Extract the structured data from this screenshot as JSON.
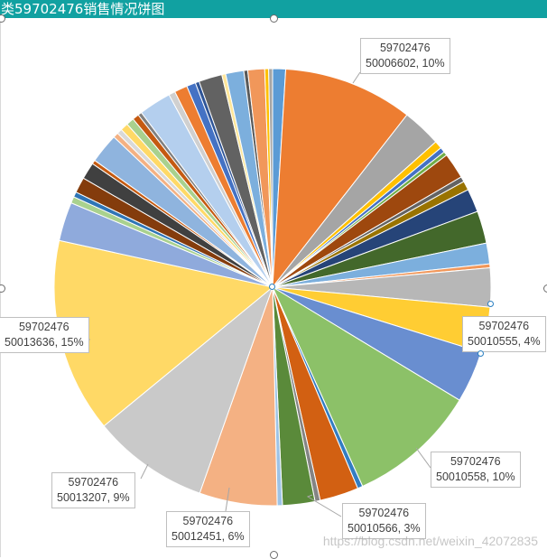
{
  "title": "类59702476销售情况饼图",
  "watermark": "https://blog.csdn.net/weixin_42072835",
  "chart_data": {
    "type": "pie",
    "title": "类59702476销售情况饼图",
    "slices": [
      {
        "category": "",
        "value": 1.0,
        "color": "#5b9bd5"
      },
      {
        "category": "50006602",
        "value": 10.0,
        "color": "#ed7d31",
        "label": "59702476\n50006602, 10%"
      },
      {
        "category": "",
        "value": 3.0,
        "color": "#a5a5a5"
      },
      {
        "category": "",
        "value": 0.6,
        "color": "#ffc000"
      },
      {
        "category": "",
        "value": 0.4,
        "color": "#4472c4"
      },
      {
        "category": "",
        "value": 0.3,
        "color": "#70ad47"
      },
      {
        "category": "",
        "value": 2.0,
        "color": "#9e480e"
      },
      {
        "category": "",
        "value": 0.4,
        "color": "#636363"
      },
      {
        "category": "",
        "value": 0.7,
        "color": "#997300"
      },
      {
        "category": "",
        "value": 1.8,
        "color": "#264478"
      },
      {
        "category": "",
        "value": 2.5,
        "color": "#43682b"
      },
      {
        "category": "",
        "value": 1.6,
        "color": "#7cafdd"
      },
      {
        "category": "",
        "value": 0.3,
        "color": "#f1975a"
      },
      {
        "category": "",
        "value": 3.0,
        "color": "#b7b7b7"
      },
      {
        "category": "",
        "value": 3.5,
        "color": "#ffcd33"
      },
      {
        "category": "50010555",
        "value": 4.0,
        "color": "#698ed0",
        "label": "59702476\n50010555, 4%"
      },
      {
        "category": "50010558",
        "value": 10.0,
        "color": "#8cc168",
        "label": "59702476\n50010558, 10%"
      },
      {
        "category": "",
        "value": 0.4,
        "color": "#327dc2"
      },
      {
        "category": "50010566",
        "value": 3.0,
        "color": "#d26012",
        "label": "59702476\n50010566, 3%"
      },
      {
        "category": "",
        "value": 0.4,
        "color": "#848484"
      },
      {
        "category": "",
        "value": 2.5,
        "color": "#5a8a3a"
      },
      {
        "category": "",
        "value": 0.4,
        "color": "#9dc3e6"
      },
      {
        "category": "50012451",
        "value": 6.0,
        "color": "#f4b183",
        "label": "59702476\n50012451, 6%"
      },
      {
        "category": "50013207",
        "value": 9.0,
        "color": "#c9c9c9",
        "label": "59702476\n50013207, 9%"
      },
      {
        "category": "50013636",
        "value": 15.0,
        "color": "#ffd966",
        "label": "59702476\n50013636, 15%"
      },
      {
        "category": "",
        "value": 3.0,
        "color": "#8faadc"
      },
      {
        "category": "",
        "value": 0.5,
        "color": "#a9d18e"
      },
      {
        "category": "",
        "value": 0.4,
        "color": "#2e75b6"
      },
      {
        "category": "",
        "value": 1.2,
        "color": "#843c0c"
      },
      {
        "category": "",
        "value": 1.3,
        "color": "#404040"
      },
      {
        "category": "",
        "value": 0.3,
        "color": "#c55a11"
      },
      {
        "category": "",
        "value": 2.3,
        "color": "#8fb4de"
      },
      {
        "category": "",
        "value": 0.4,
        "color": "#f4b183"
      },
      {
        "category": "",
        "value": 0.4,
        "color": "#d9d9d9"
      },
      {
        "category": "",
        "value": 0.6,
        "color": "#ffd966"
      },
      {
        "category": "",
        "value": 0.6,
        "color": "#a9d18e"
      },
      {
        "category": "",
        "value": 0.5,
        "color": "#c55a11"
      },
      {
        "category": "",
        "value": 0.3,
        "color": "#808080"
      },
      {
        "category": "",
        "value": 2.5,
        "color": "#b4cfee"
      },
      {
        "category": "",
        "value": 0.5,
        "color": "#d0d0d0"
      },
      {
        "category": "",
        "value": 1.0,
        "color": "#ed7d31"
      },
      {
        "category": "",
        "value": 0.7,
        "color": "#4472c4"
      },
      {
        "category": "",
        "value": 0.3,
        "color": "#2f5597"
      },
      {
        "category": "",
        "value": 1.8,
        "color": "#626262"
      },
      {
        "category": "",
        "value": 0.3,
        "color": "#ffe699"
      },
      {
        "category": "",
        "value": 1.4,
        "color": "#7cafdd"
      },
      {
        "category": "",
        "value": 0.3,
        "color": "#595959"
      },
      {
        "category": "",
        "value": 1.3,
        "color": "#f1975a"
      },
      {
        "category": "",
        "value": 0.3,
        "color": "#ffc000"
      },
      {
        "category": "",
        "value": 0.3,
        "color": "#a5a5a5"
      }
    ],
    "data_labels": [
      {
        "line1": "59702476",
        "line2": "50006602, 10%"
      },
      {
        "line1": "59702476",
        "line2": "50010555, 4%"
      },
      {
        "line1": "59702476",
        "line2": "50010558, 10%"
      },
      {
        "line1": "59702476",
        "line2": "50010566, 3%"
      },
      {
        "line1": "59702476",
        "line2": "50012451, 6%"
      },
      {
        "line1": "59702476",
        "line2": "50013207, 9%"
      },
      {
        "line1": "59702476",
        "line2": "50013636, 15%"
      }
    ]
  }
}
